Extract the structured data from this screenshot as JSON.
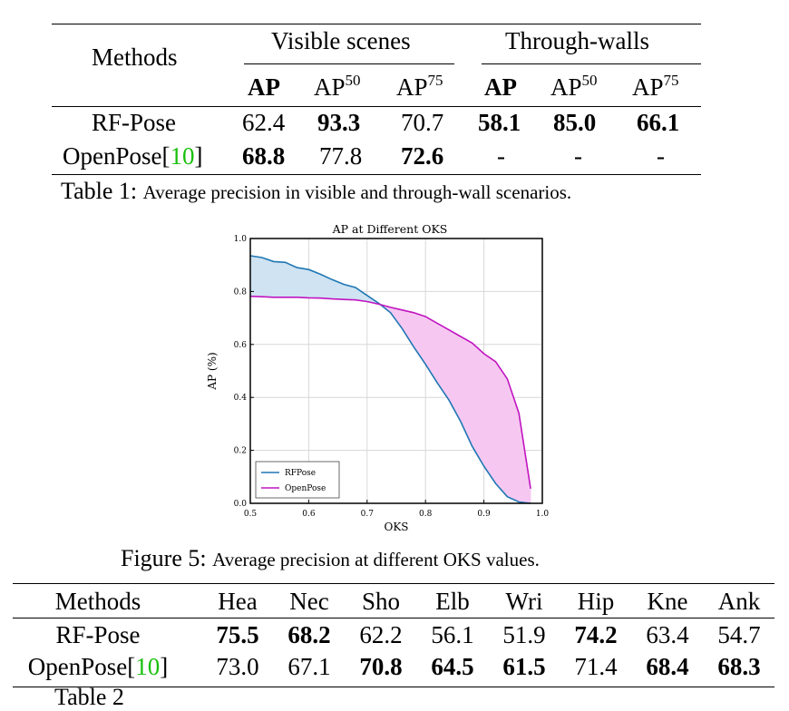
{
  "table1": {
    "col_methods": "Methods",
    "group_visible": "Visible scenes",
    "group_through": "Through-walls",
    "sub_ap": "AP",
    "sub_ap_base": "AP",
    "sup50": "50",
    "sup75": "75",
    "rows": [
      {
        "method": "RF-Pose",
        "ref": "",
        "values": [
          "62.4",
          "93.3",
          "70.7",
          "58.1",
          "85.0",
          "66.1"
        ],
        "bold": [
          false,
          true,
          false,
          true,
          true,
          true
        ]
      },
      {
        "method": "OpenPose[",
        "ref": "10",
        "close": "]",
        "values": [
          "68.8",
          "77.8",
          "72.6",
          "-",
          "-",
          "-"
        ],
        "bold": [
          true,
          false,
          true,
          false,
          false,
          false
        ]
      }
    ],
    "caption_label": "Table 1:",
    "caption_text": "Average precision in visible and through-wall scenarios."
  },
  "figure": {
    "caption_label": "Figure 5:",
    "caption_text": "Average precision at different OKS values."
  },
  "chart_data": {
    "type": "line",
    "title": "AP at Different OKS",
    "xlabel": "OKS",
    "ylabel": "AP (%)",
    "xlim": [
      0.5,
      1.0
    ],
    "ylim": [
      0.0,
      1.0
    ],
    "xticks": [
      "0.5",
      "0.6",
      "0.7",
      "0.8",
      "0.9",
      "1.0"
    ],
    "yticks": [
      "0.0",
      "0.2",
      "0.4",
      "0.6",
      "0.8",
      "1.0"
    ],
    "grid": true,
    "legend_position": "bottom-left",
    "fill_between": true,
    "series": [
      {
        "name": "RFPose",
        "color": "#1f77b4",
        "x": [
          0.5,
          0.52,
          0.54,
          0.56,
          0.58,
          0.6,
          0.62,
          0.64,
          0.66,
          0.68,
          0.7,
          0.72,
          0.74,
          0.76,
          0.78,
          0.8,
          0.82,
          0.84,
          0.86,
          0.88,
          0.9,
          0.92,
          0.94,
          0.96,
          0.98
        ],
        "y": [
          0.935,
          0.928,
          0.913,
          0.91,
          0.89,
          0.883,
          0.865,
          0.845,
          0.827,
          0.815,
          0.785,
          0.755,
          0.72,
          0.66,
          0.59,
          0.525,
          0.455,
          0.39,
          0.31,
          0.215,
          0.14,
          0.075,
          0.025,
          0.005,
          0.0
        ]
      },
      {
        "name": "OpenPose",
        "color": "#c014c0",
        "x": [
          0.5,
          0.52,
          0.54,
          0.56,
          0.58,
          0.6,
          0.62,
          0.64,
          0.66,
          0.68,
          0.7,
          0.72,
          0.74,
          0.76,
          0.78,
          0.8,
          0.82,
          0.84,
          0.86,
          0.88,
          0.9,
          0.92,
          0.94,
          0.96,
          0.98
        ],
        "y": [
          0.782,
          0.78,
          0.778,
          0.778,
          0.778,
          0.776,
          0.775,
          0.772,
          0.77,
          0.768,
          0.762,
          0.752,
          0.74,
          0.73,
          0.72,
          0.705,
          0.68,
          0.655,
          0.63,
          0.605,
          0.565,
          0.535,
          0.47,
          0.34,
          0.055
        ]
      }
    ]
  },
  "table2": {
    "headers": [
      "Methods",
      "Hea",
      "Nec",
      "Sho",
      "Elb",
      "Wri",
      "Hip",
      "Kne",
      "Ank"
    ],
    "rows": [
      {
        "method": "RF-Pose",
        "values": [
          "75.5",
          "68.2",
          "62.2",
          "56.1",
          "51.9",
          "74.2",
          "63.4",
          "54.7"
        ],
        "bold": [
          true,
          true,
          false,
          false,
          false,
          true,
          false,
          false
        ]
      },
      {
        "method": "OpenPose[",
        "ref": "10",
        "close": "]",
        "values": [
          "73.0",
          "67.1",
          "70.8",
          "64.5",
          "61.5",
          "71.4",
          "68.4",
          "68.3"
        ],
        "bold": [
          false,
          false,
          true,
          true,
          true,
          false,
          true,
          true
        ]
      }
    ],
    "caption_partial": "Table 2"
  }
}
